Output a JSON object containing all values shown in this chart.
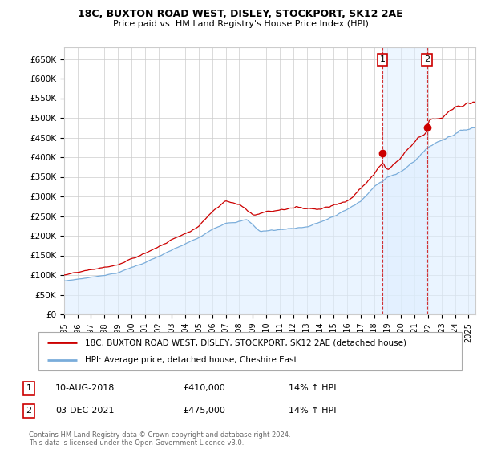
{
  "title": "18C, BUXTON ROAD WEST, DISLEY, STOCKPORT, SK12 2AE",
  "subtitle": "Price paid vs. HM Land Registry's House Price Index (HPI)",
  "ylabel_ticks": [
    "£0",
    "£50K",
    "£100K",
    "£150K",
    "£200K",
    "£250K",
    "£300K",
    "£350K",
    "£400K",
    "£450K",
    "£500K",
    "£550K",
    "£600K",
    "£650K"
  ],
  "ytick_vals": [
    0,
    50000,
    100000,
    150000,
    200000,
    250000,
    300000,
    350000,
    400000,
    450000,
    500000,
    550000,
    600000,
    650000
  ],
  "ylim": [
    0,
    680000
  ],
  "xlim_start": 1995.0,
  "xlim_end": 2025.5,
  "legend_line1": "18C, BUXTON ROAD WEST, DISLEY, STOCKPORT, SK12 2AE (detached house)",
  "legend_line2": "HPI: Average price, detached house, Cheshire East",
  "sale1_date": 2018.62,
  "sale1_price": 410000,
  "sale2_date": 2021.92,
  "sale2_price": 475000,
  "footer": "Contains HM Land Registry data © Crown copyright and database right 2024.\nThis data is licensed under the Open Government Licence v3.0.",
  "red_color": "#cc0000",
  "blue_color": "#7aaddb",
  "blue_fill": "#ddeeff",
  "highlight_fill": "#ddeeff"
}
